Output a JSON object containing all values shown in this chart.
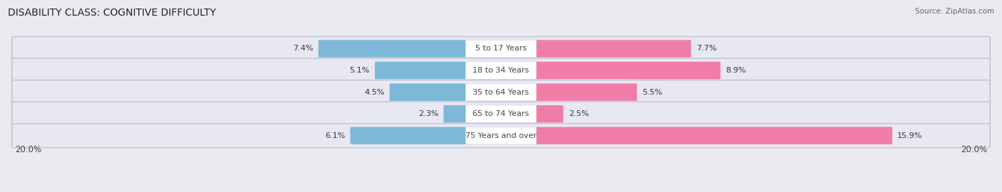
{
  "title": "DISABILITY CLASS: COGNITIVE DIFFICULTY",
  "source": "Source: ZipAtlas.com",
  "categories": [
    "5 to 17 Years",
    "18 to 34 Years",
    "35 to 64 Years",
    "65 to 74 Years",
    "75 Years and over"
  ],
  "male_values": [
    7.4,
    5.1,
    4.5,
    2.3,
    6.1
  ],
  "female_values": [
    7.7,
    8.9,
    5.5,
    2.5,
    15.9
  ],
  "max_val": 20.0,
  "male_color": "#7db8d8",
  "female_color": "#f07ca8",
  "bg_color": "#eaeaf0",
  "row_bg_color": "#e0e0ea",
  "row_edge_color": "#c8c8d8",
  "title_fontsize": 10,
  "label_fontsize": 8.5,
  "bar_label_fontsize": 8,
  "legend_fontsize": 8.5,
  "cat_label_fontsize": 8
}
